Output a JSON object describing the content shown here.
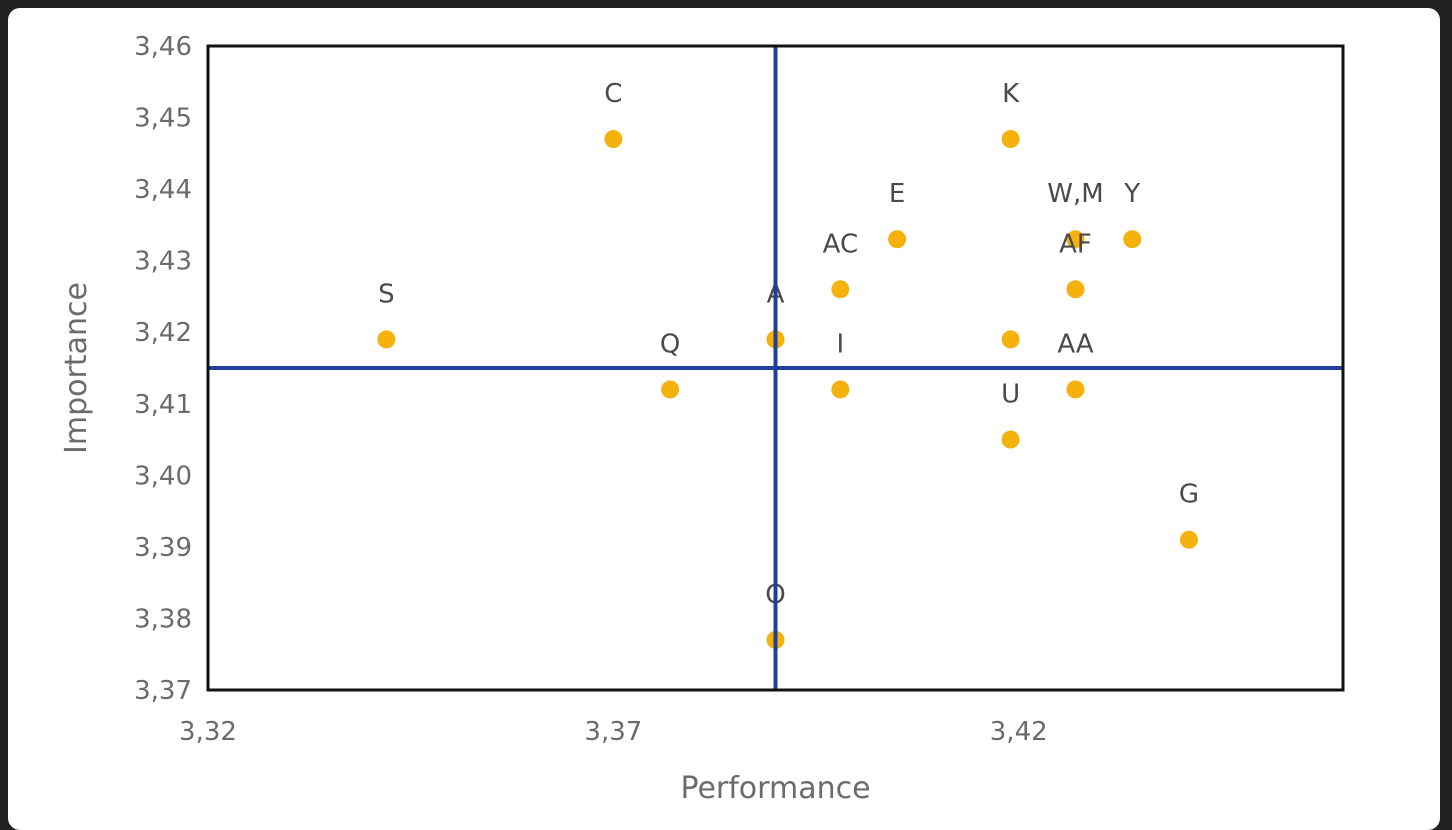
{
  "chart_data": {
    "type": "scatter",
    "xlabel": "Performance",
    "ylabel": "Importance",
    "xlim": [
      3.32,
      3.46
    ],
    "ylim": [
      3.37,
      3.46
    ],
    "xticks": [
      "3,32",
      "3,37",
      "3,42"
    ],
    "xtick_values": [
      3.32,
      3.37,
      3.42
    ],
    "yticks": [
      "3,46",
      "3,45",
      "3,44",
      "3,43",
      "3,42",
      "3,41",
      "3,40",
      "3,39",
      "3,38",
      "3,37"
    ],
    "ytick_values": [
      3.46,
      3.45,
      3.44,
      3.43,
      3.42,
      3.41,
      3.4,
      3.39,
      3.38,
      3.37
    ],
    "reference_lines": {
      "x": 3.39,
      "y": 3.415
    },
    "reference_line_color": "#1f3f9a",
    "marker_color": "#f5b10c",
    "grid": false,
    "points": [
      {
        "label": "C",
        "x": 3.37,
        "y": 3.447
      },
      {
        "label": "K",
        "x": 3.419,
        "y": 3.447
      },
      {
        "label": "E",
        "x": 3.405,
        "y": 3.433
      },
      {
        "label": "W,M",
        "x": 3.427,
        "y": 3.433
      },
      {
        "label": "Y",
        "x": 3.434,
        "y": 3.433
      },
      {
        "label": "AC",
        "x": 3.398,
        "y": 3.426
      },
      {
        "label": "AF",
        "x": 3.427,
        "y": 3.426
      },
      {
        "label": "S",
        "x": 3.342,
        "y": 3.419
      },
      {
        "label": "A",
        "x": 3.39,
        "y": 3.419
      },
      {
        "label": "",
        "x": 3.419,
        "y": 3.419
      },
      {
        "label": "Q",
        "x": 3.377,
        "y": 3.412
      },
      {
        "label": "I",
        "x": 3.398,
        "y": 3.412
      },
      {
        "label": "AA",
        "x": 3.427,
        "y": 3.412
      },
      {
        "label": "U",
        "x": 3.419,
        "y": 3.405
      },
      {
        "label": "G",
        "x": 3.441,
        "y": 3.391
      },
      {
        "label": "O",
        "x": 3.39,
        "y": 3.377
      }
    ]
  }
}
